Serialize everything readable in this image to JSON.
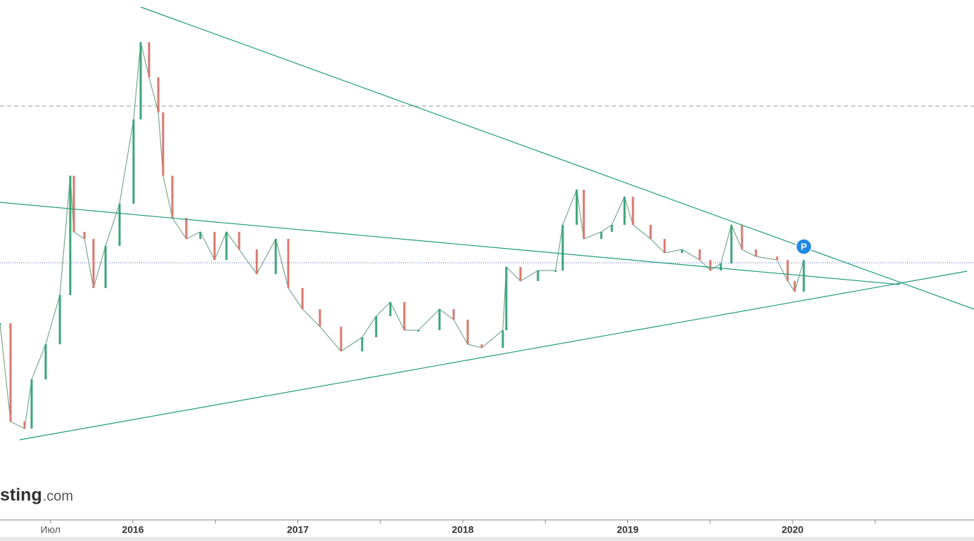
{
  "chart_data": {
    "type": "candle-line",
    "x": [
      2015.194,
      2015.258,
      2015.343,
      2015.386,
      2015.471,
      2015.557,
      2015.62,
      2015.642,
      2015.706,
      2015.761,
      2015.834,
      2015.919,
      2016.004,
      2016.047,
      2016.098,
      2016.154,
      2016.183,
      2016.239,
      2016.324,
      2016.409,
      2016.495,
      2016.567,
      2016.644,
      2016.751,
      2016.866,
      2016.942,
      2017.028,
      2017.134,
      2017.262,
      2017.39,
      2017.475,
      2017.561,
      2017.646,
      2017.731,
      2017.859,
      2017.945,
      2018.03,
      2018.115,
      2018.243,
      2018.264,
      2018.35,
      2018.456,
      2018.563,
      2018.606,
      2018.691,
      2018.734,
      2018.84,
      2018.904,
      2018.981,
      2019.032,
      2019.139,
      2019.224,
      2019.33,
      2019.437,
      2019.501,
      2019.565,
      2019.629,
      2019.693,
      2019.778,
      2019.906,
      2019.97,
      2020.013,
      2020.068
    ],
    "values": [
      280,
      140,
      130,
      200,
      250,
      320,
      490,
      410,
      400,
      330,
      390,
      450,
      570,
      680,
      630,
      580,
      490,
      430,
      400,
      410,
      370,
      410,
      385,
      350,
      400,
      330,
      300,
      275,
      240,
      260,
      290,
      310,
      270,
      270,
      300,
      285,
      250,
      245,
      270,
      360,
      340,
      355,
      355,
      420,
      470,
      400,
      410,
      420,
      460,
      420,
      400,
      380,
      385,
      370,
      355,
      365,
      420,
      385,
      375,
      370,
      340,
      325,
      370
    ],
    "up_color": "#3aa57a",
    "down_color": "#d9786e",
    "xlim": [
      2015.194,
      2021.1
    ],
    "ylim": [
      0,
      740
    ],
    "xticks": [
      {
        "value": 2015.5,
        "label": "Июл"
      },
      2016,
      2017,
      2018,
      2019,
      2020
    ],
    "minor_xticks": [
      2016.5,
      2017.5,
      2018.5,
      2019.5,
      2020.5
    ],
    "trend_lines": [
      {
        "x": [
          2016.047,
          2021.1
        ],
        "y": [
          730,
          300
        ],
        "color": "#1f9a78"
      },
      {
        "x": [
          2015.194,
          2020.652
        ],
        "y": [
          452,
          335
        ],
        "color": "#1f9a78"
      },
      {
        "x": [
          2015.313,
          2021.058
        ],
        "y": [
          114,
          354
        ],
        "color": "#1f9a78"
      }
    ],
    "hlines": [
      {
        "y": 589,
        "color": "#9a9a9a",
        "style": "dashed"
      },
      {
        "y": 366,
        "color": "#4a5bd0",
        "style": "dotted"
      }
    ],
    "marker": {
      "label": "P",
      "x": 2020.068,
      "y": 389,
      "color": "#1e88e5"
    },
    "watermark": {
      "brand": "sting",
      "suffix": ".com"
    }
  }
}
